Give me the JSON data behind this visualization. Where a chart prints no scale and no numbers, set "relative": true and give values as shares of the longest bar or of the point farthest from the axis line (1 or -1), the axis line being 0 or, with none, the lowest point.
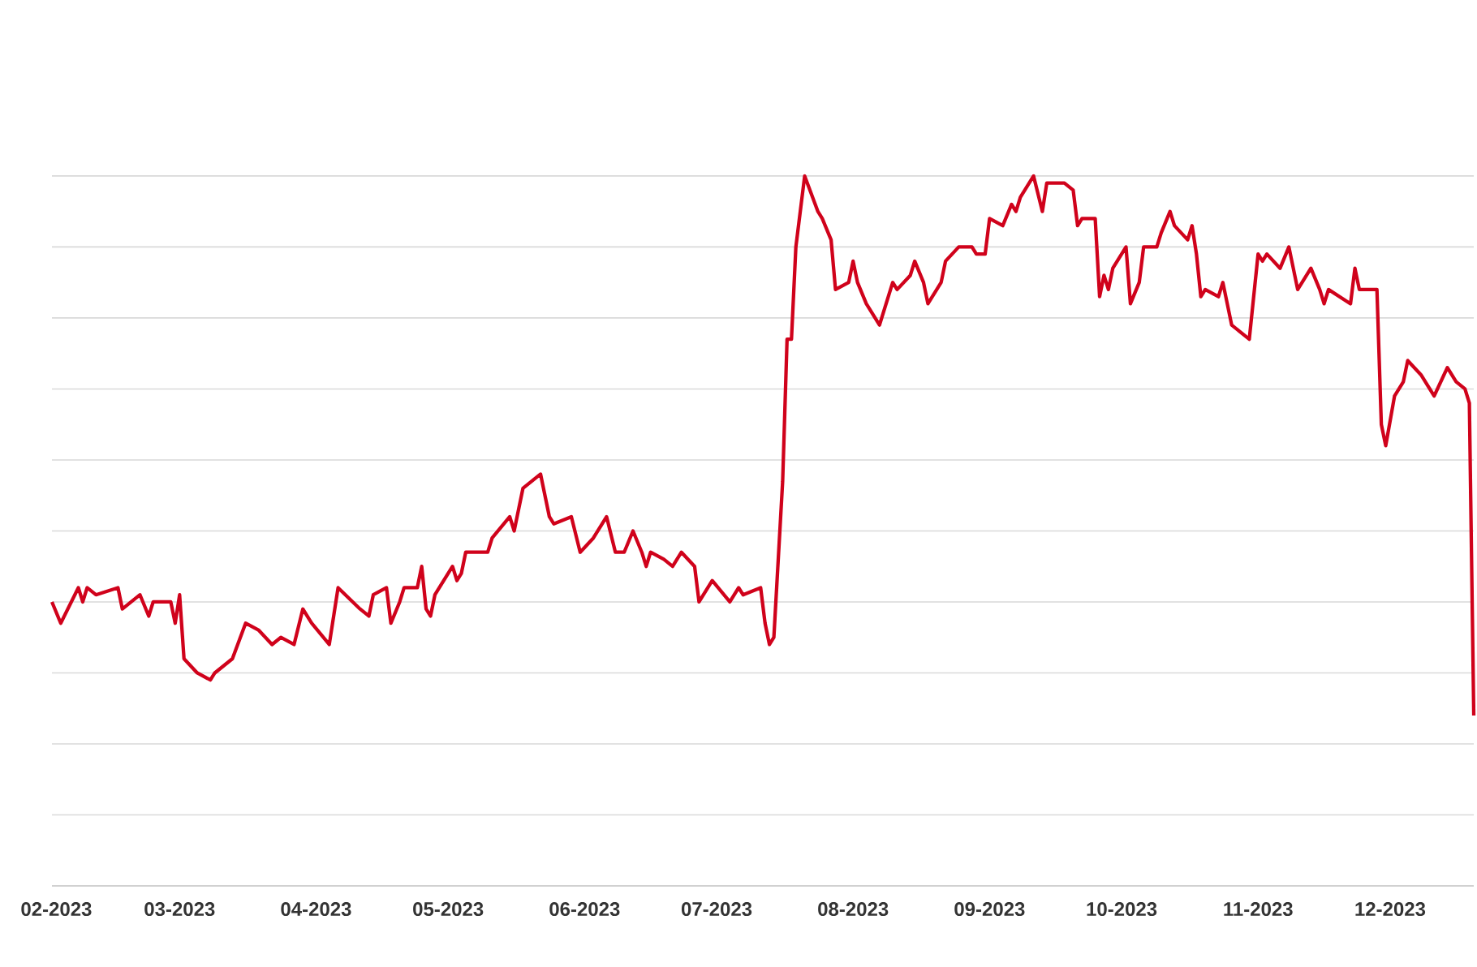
{
  "chart_data": {
    "type": "line",
    "relative": true,
    "color": "#d0021b",
    "grid": "y",
    "xlim": [
      "2023-01-31",
      "2023-12-20"
    ],
    "xticks": [
      {
        "value": "2023-02-01",
        "label": "02-2023"
      },
      {
        "value": "2023-03-01",
        "label": "03-2023"
      },
      {
        "value": "2023-04-01",
        "label": "04-2023"
      },
      {
        "value": "2023-05-01",
        "label": "05-2023"
      },
      {
        "value": "2023-06-01",
        "label": "06-2023"
      },
      {
        "value": "2023-07-01",
        "label": "07-2023"
      },
      {
        "value": "2023-08-01",
        "label": "08-2023"
      },
      {
        "value": "2023-09-01",
        "label": "09-2023"
      },
      {
        "value": "2023-10-01",
        "label": "10-2023"
      },
      {
        "value": "2023-11-01",
        "label": "11-2023"
      },
      {
        "value": "2023-12-01",
        "label": "12-2023"
      }
    ],
    "x": [
      "2023-01-31",
      "2023-02-02",
      "2023-02-06",
      "2023-02-07",
      "2023-02-08",
      "2023-02-10",
      "2023-02-15",
      "2023-02-16",
      "2023-02-20",
      "2023-02-22",
      "2023-02-23",
      "2023-02-27",
      "2023-02-28",
      "2023-03-01",
      "2023-03-02",
      "2023-03-05",
      "2023-03-08",
      "2023-03-09",
      "2023-03-13",
      "2023-03-16",
      "2023-03-19",
      "2023-03-22",
      "2023-03-24",
      "2023-03-27",
      "2023-03-29",
      "2023-03-31",
      "2023-04-04",
      "2023-04-06",
      "2023-04-11",
      "2023-04-13",
      "2023-04-14",
      "2023-04-17",
      "2023-04-18",
      "2023-04-20",
      "2023-04-21",
      "2023-04-24",
      "2023-04-25",
      "2023-04-26",
      "2023-04-27",
      "2023-04-28",
      "2023-05-02",
      "2023-05-03",
      "2023-05-04",
      "2023-05-05",
      "2023-05-08",
      "2023-05-10",
      "2023-05-11",
      "2023-05-15",
      "2023-05-16",
      "2023-05-18",
      "2023-05-22",
      "2023-05-24",
      "2023-05-25",
      "2023-05-29",
      "2023-05-31",
      "2023-06-03",
      "2023-06-06",
      "2023-06-08",
      "2023-06-10",
      "2023-06-12",
      "2023-06-14",
      "2023-06-15",
      "2023-06-16",
      "2023-06-19",
      "2023-06-21",
      "2023-06-23",
      "2023-06-26",
      "2023-06-27",
      "2023-06-30",
      "2023-07-04",
      "2023-07-06",
      "2023-07-07",
      "2023-07-11",
      "2023-07-12",
      "2023-07-13",
      "2023-07-14",
      "2023-07-16",
      "2023-07-17",
      "2023-07-18",
      "2023-07-19",
      "2023-07-21",
      "2023-07-24",
      "2023-07-25",
      "2023-07-27",
      "2023-07-28",
      "2023-07-31",
      "2023-08-01",
      "2023-08-02",
      "2023-08-04",
      "2023-08-07",
      "2023-08-10",
      "2023-08-11",
      "2023-08-14",
      "2023-08-15",
      "2023-08-17",
      "2023-08-18",
      "2023-08-21",
      "2023-08-22",
      "2023-08-25",
      "2023-08-28",
      "2023-08-29",
      "2023-08-31",
      "2023-09-01",
      "2023-09-04",
      "2023-09-06",
      "2023-09-07",
      "2023-09-08",
      "2023-09-11",
      "2023-09-13",
      "2023-09-14",
      "2023-09-18",
      "2023-09-20",
      "2023-09-21",
      "2023-09-22",
      "2023-09-25",
      "2023-09-26",
      "2023-09-27",
      "2023-09-28",
      "2023-09-29",
      "2023-10-02",
      "2023-10-03",
      "2023-10-05",
      "2023-10-06",
      "2023-10-09",
      "2023-10-10",
      "2023-10-12",
      "2023-10-13",
      "2023-10-16",
      "2023-10-17",
      "2023-10-18",
      "2023-10-19",
      "2023-10-20",
      "2023-10-23",
      "2023-10-24",
      "2023-10-26",
      "2023-10-30",
      "2023-11-01",
      "2023-11-02",
      "2023-11-03",
      "2023-11-06",
      "2023-11-08",
      "2023-11-10",
      "2023-11-13",
      "2023-11-15",
      "2023-11-16",
      "2023-11-17",
      "2023-11-22",
      "2023-11-23",
      "2023-11-24",
      "2023-11-28",
      "2023-11-29",
      "2023-11-30",
      "2023-12-02",
      "2023-12-04",
      "2023-12-05",
      "2023-12-08",
      "2023-12-11",
      "2023-12-14",
      "2023-12-16",
      "2023-12-18",
      "2023-12-19",
      "2023-12-20"
    ],
    "values": [
      0.4,
      0.37,
      0.42,
      0.4,
      0.42,
      0.41,
      0.42,
      0.39,
      0.41,
      0.38,
      0.4,
      0.4,
      0.37,
      0.41,
      0.32,
      0.3,
      0.29,
      0.3,
      0.32,
      0.37,
      0.36,
      0.34,
      0.35,
      0.34,
      0.39,
      0.37,
      0.34,
      0.42,
      0.39,
      0.38,
      0.41,
      0.42,
      0.37,
      0.4,
      0.42,
      0.42,
      0.45,
      0.39,
      0.38,
      0.41,
      0.45,
      0.43,
      0.44,
      0.47,
      0.47,
      0.47,
      0.49,
      0.52,
      0.5,
      0.56,
      0.58,
      0.52,
      0.51,
      0.52,
      0.47,
      0.49,
      0.52,
      0.47,
      0.47,
      0.5,
      0.47,
      0.45,
      0.47,
      0.46,
      0.45,
      0.47,
      0.45,
      0.4,
      0.43,
      0.4,
      0.42,
      0.41,
      0.42,
      0.37,
      0.34,
      0.35,
      0.57,
      0.77,
      0.77,
      0.9,
      1.0,
      0.95,
      0.94,
      0.91,
      0.84,
      0.85,
      0.88,
      0.85,
      0.82,
      0.79,
      0.85,
      0.84,
      0.86,
      0.88,
      0.85,
      0.82,
      0.85,
      0.88,
      0.9,
      0.9,
      0.89,
      0.89,
      0.94,
      0.93,
      0.96,
      0.95,
      0.97,
      1.0,
      0.95,
      0.99,
      0.99,
      0.98,
      0.93,
      0.94,
      0.94,
      0.83,
      0.86,
      0.84,
      0.87,
      0.9,
      0.82,
      0.85,
      0.9,
      0.9,
      0.92,
      0.95,
      0.93,
      0.91,
      0.93,
      0.89,
      0.83,
      0.84,
      0.83,
      0.85,
      0.79,
      0.77,
      0.89,
      0.88,
      0.89,
      0.87,
      0.9,
      0.84,
      0.87,
      0.84,
      0.82,
      0.84,
      0.82,
      0.87,
      0.84,
      0.84,
      0.65,
      0.62,
      0.69,
      0.71,
      0.74,
      0.72,
      0.69,
      0.73,
      0.71,
      0.7,
      0.68,
      0.24
    ]
  }
}
